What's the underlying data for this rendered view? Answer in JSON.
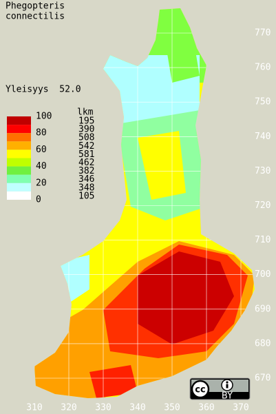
{
  "title": [
    "Phegopteris",
    "connectilis"
  ],
  "frequency": "Yleisyys  52.0",
  "legend": {
    "scale": [
      100,
      80,
      60,
      40,
      20,
      0
    ],
    "count_title": "lkm",
    "counts": [
      195,
      390,
      508,
      542,
      581,
      462,
      382,
      346,
      348,
      105
    ]
  },
  "x_labels": [
    310,
    320,
    330,
    340,
    350,
    360,
    370
  ],
  "y_labels": [
    770,
    760,
    750,
    740,
    730,
    720,
    710,
    700,
    690,
    680,
    670
  ],
  "license": "BY"
}
